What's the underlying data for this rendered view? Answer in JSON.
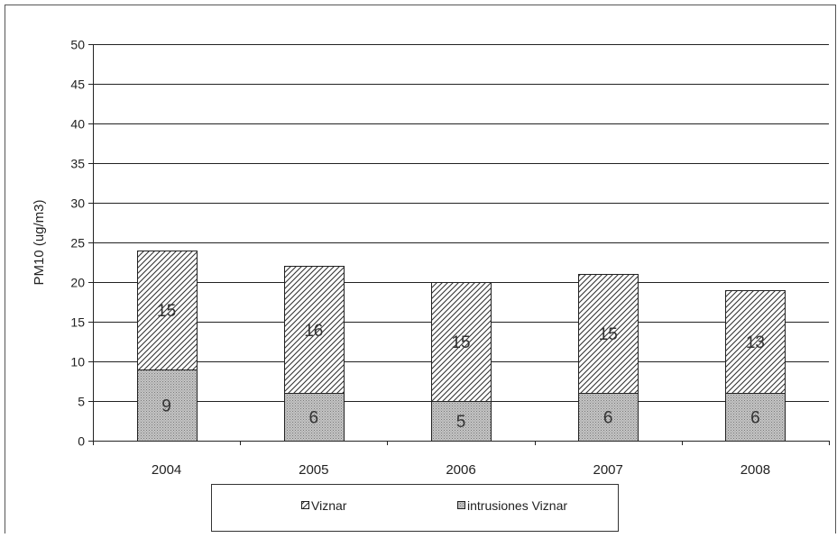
{
  "chart_data": {
    "type": "bar",
    "stacked": true,
    "categories": [
      "2004",
      "2005",
      "2006",
      "2007",
      "2008"
    ],
    "series": [
      {
        "name": "intrusiones Viznar",
        "values": [
          9,
          6,
          5,
          6,
          6
        ],
        "fill": "#b8b8b8",
        "pattern": "dotted"
      },
      {
        "name": "Viznar",
        "values": [
          15,
          16,
          15,
          15,
          13
        ],
        "fill": "#ffffff",
        "pattern": "diagonal-hatch"
      }
    ],
    "ylabel": "PM10 (ug/m3)",
    "xlabel": "",
    "ylim": [
      0,
      50
    ],
    "yticks": [
      0,
      5,
      10,
      15,
      20,
      25,
      30,
      35,
      40,
      45,
      50
    ],
    "grid": true,
    "legend": {
      "position": "bottom",
      "items": [
        {
          "label": "Viznar",
          "series": "Viznar"
        },
        {
          "label": "intrusiones Viznar",
          "series": "intrusiones Viznar"
        }
      ]
    }
  }
}
